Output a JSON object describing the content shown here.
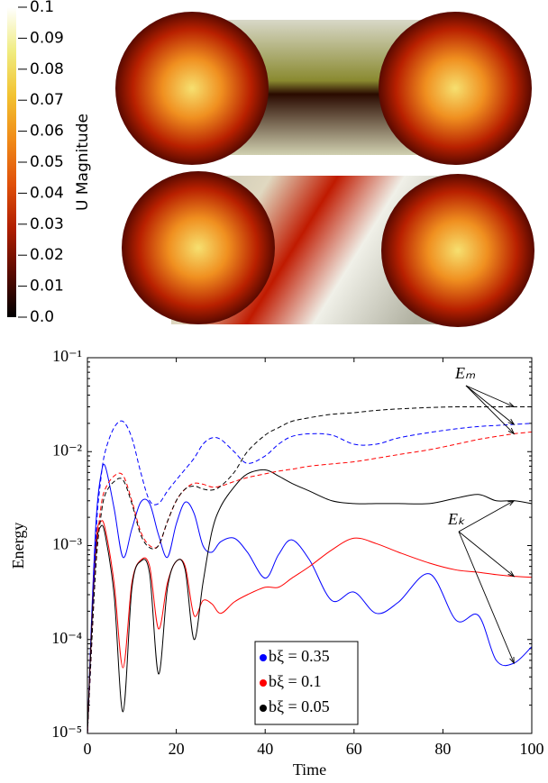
{
  "chart_data": [
    {
      "type": "colorbar",
      "label": "U Magnitude",
      "clim": [
        0,
        0.1
      ],
      "ticks": [
        {
          "value": 0,
          "label": "0.0"
        },
        0.01,
        0.02,
        0.03,
        0.04,
        0.05,
        0.06,
        0.07,
        0.08,
        0.09,
        0.1
      ],
      "colors": [
        "#000000",
        "#5a0a00",
        "#b01e00",
        "#e0500a",
        "#f08a18",
        "#f2c230",
        "#f0ec80",
        "#ffffff"
      ]
    },
    {
      "type": "line",
      "log_y": true,
      "xlabel": "Time",
      "ylabel": "Energy",
      "xlim": [
        0,
        100
      ],
      "ylim": [
        1e-05,
        0.1
      ],
      "xticks": [
        0,
        20,
        40,
        60,
        80,
        100
      ],
      "yticks": [
        {
          "value": 1e-05,
          "label": "10⁻⁵"
        },
        {
          "value": 0.0001,
          "label": "10⁻⁴"
        },
        {
          "value": 0.001,
          "label": "10⁻³"
        },
        {
          "value": 0.01,
          "label": "10⁻²"
        },
        {
          "value": 0.1,
          "label": "10⁻¹"
        }
      ],
      "x": [
        0,
        1,
        2,
        3,
        4,
        6,
        8,
        10,
        12,
        14,
        16,
        18,
        20,
        22,
        24,
        26,
        28,
        30,
        33,
        36,
        40,
        43,
        46,
        50,
        55,
        60,
        65,
        70,
        77,
        83,
        88,
        92,
        96,
        100
      ],
      "series": [
        {
          "name": "bξ = 0.35",
          "color": "#0000ff",
          "line_style": "solid",
          "values": [
            1e-05,
            0.0002,
            0.002,
            0.0055,
            0.007,
            0.0025,
            0.00075,
            0.0015,
            0.0029,
            0.0028,
            0.0013,
            0.00075,
            0.0017,
            0.0029,
            0.0022,
            0.001,
            0.00085,
            0.0011,
            0.0012,
            0.00085,
            0.00045,
            0.0008,
            0.00115,
            0.0007,
            0.00026,
            0.00032,
            0.00019,
            0.00025,
            0.0005,
            0.00016,
            0.00018,
            6e-05,
            5.6e-05,
            8.4e-05
          ]
        },
        {
          "name": "bξ = 0.1",
          "color": "#ff0000",
          "line_style": "solid",
          "values": [
            1e-05,
            0.00015,
            0.0012,
            0.0018,
            0.0015,
            0.0004,
            5e-05,
            0.0004,
            0.0007,
            0.0006,
            0.00013,
            0.0004,
            0.00068,
            0.0006,
            0.00018,
            0.00026,
            0.00024,
            0.00019,
            0.00025,
            0.0003,
            0.00036,
            0.00036,
            0.00045,
            0.0006,
            0.0009,
            0.0012,
            0.00105,
            0.00085,
            0.00065,
            0.00055,
            0.00052,
            0.00049,
            0.00047,
            0.00046
          ]
        },
        {
          "name": "bξ = 0.05",
          "color": "#000000",
          "line_style": "solid",
          "values": [
            1e-05,
            0.00015,
            0.001,
            0.0016,
            0.0013,
            0.0003,
            1.7e-05,
            0.00035,
            0.00068,
            0.0005,
            4.3e-05,
            0.00035,
            0.00068,
            0.00055,
            0.0001,
            0.0004,
            0.0014,
            0.0026,
            0.0042,
            0.0058,
            0.0064,
            0.0055,
            0.0046,
            0.0038,
            0.003,
            0.0028,
            0.0028,
            0.0028,
            0.0028,
            0.0032,
            0.0035,
            0.003,
            0.003,
            0.0028
          ]
        },
        {
          "color": "#0000ff",
          "line_style": "dashed",
          "values": [
            1e-05,
            0.0001,
            0.0015,
            0.005,
            0.01,
            0.018,
            0.021,
            0.014,
            0.006,
            0.003,
            0.0028,
            0.0038,
            0.005,
            0.0065,
            0.0085,
            0.012,
            0.014,
            0.0135,
            0.01,
            0.0075,
            0.009,
            0.012,
            0.0145,
            0.0155,
            0.015,
            0.012,
            0.012,
            0.014,
            0.016,
            0.0175,
            0.0185,
            0.019,
            0.0195,
            0.02
          ]
        },
        {
          "color": "#ff0000",
          "line_style": "dashed",
          "values": [
            1e-05,
            0.0001,
            0.0008,
            0.0025,
            0.004,
            0.0055,
            0.0056,
            0.003,
            0.0014,
            0.001,
            0.001,
            0.0018,
            0.003,
            0.004,
            0.0046,
            0.0045,
            0.0042,
            0.0043,
            0.0048,
            0.0053,
            0.0058,
            0.0062,
            0.0065,
            0.007,
            0.0074,
            0.0078,
            0.0085,
            0.0093,
            0.0105,
            0.012,
            0.0135,
            0.0145,
            0.0155,
            0.0162
          ]
        },
        {
          "color": "#000000",
          "line_style": "dashed",
          "values": [
            1e-05,
            0.0001,
            0.0007,
            0.002,
            0.0035,
            0.0048,
            0.005,
            0.0028,
            0.0013,
            0.00095,
            0.001,
            0.0018,
            0.003,
            0.004,
            0.0043,
            0.004,
            0.0039,
            0.0043,
            0.006,
            0.01,
            0.015,
            0.018,
            0.021,
            0.023,
            0.025,
            0.026,
            0.0275,
            0.0285,
            0.0295,
            0.03,
            0.03,
            0.03,
            0.03,
            0.03
          ]
        }
      ],
      "annotations": [
        {
          "text": "Eₘ",
          "line_style": "dashed"
        },
        {
          "text": "Eₖ",
          "line_style": "solid"
        }
      ],
      "legend": "lower center"
    }
  ]
}
